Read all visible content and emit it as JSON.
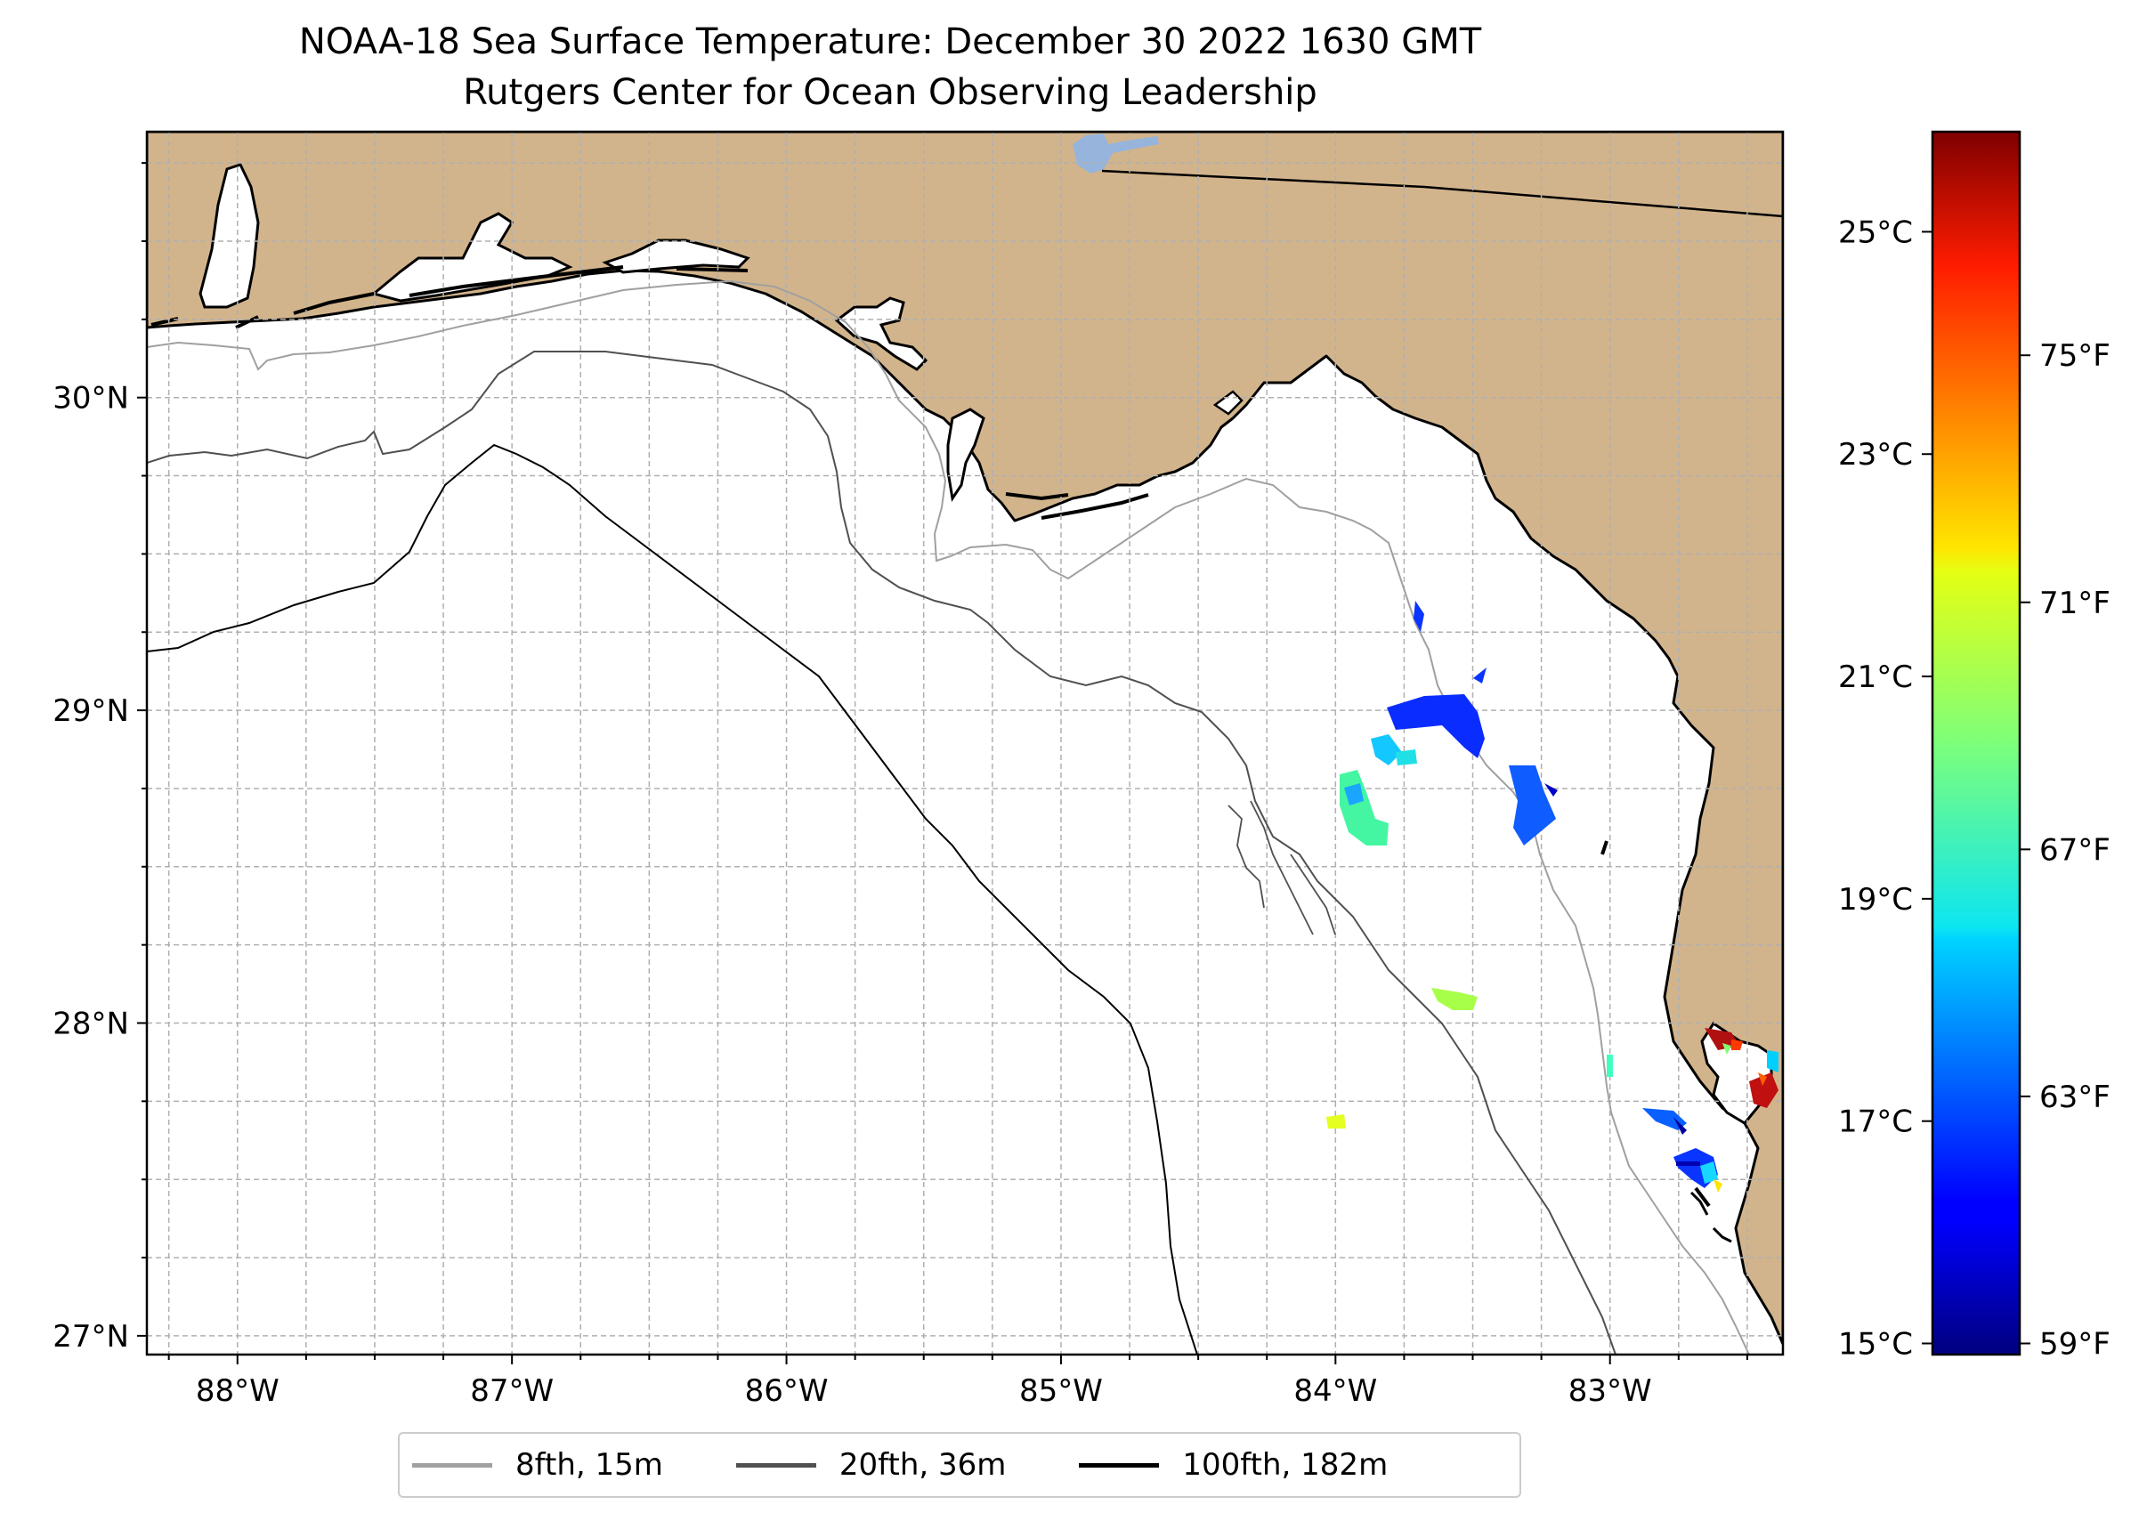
{
  "title": {
    "line1": "NOAA-18 Sea Surface Temperature: December 30 2022 1630 GMT",
    "line2": "Rutgers Center for Ocean Observing Leadership"
  },
  "map": {
    "lon_range": [
      -88.33,
      -82.37
    ],
    "lat_range": [
      26.94,
      30.85
    ],
    "land_color": "#d2b48c",
    "water_color": "#ffffff",
    "lon_ticks": [
      {
        "value": -88,
        "label": "88°W"
      },
      {
        "value": -87,
        "label": "87°W"
      },
      {
        "value": -86,
        "label": "86°W"
      },
      {
        "value": -85,
        "label": "85°W"
      },
      {
        "value": -84,
        "label": "84°W"
      },
      {
        "value": -83,
        "label": "83°W"
      }
    ],
    "lat_ticks": [
      {
        "value": 27,
        "label": "27°N"
      },
      {
        "value": 28,
        "label": "28°N"
      },
      {
        "value": 29,
        "label": "29°N"
      },
      {
        "value": 30,
        "label": "30°N"
      }
    ]
  },
  "colorbar": {
    "celsius_ticks": [
      {
        "value": 15,
        "label": "15°C"
      },
      {
        "value": 17,
        "label": "17°C"
      },
      {
        "value": 19,
        "label": "19°C"
      },
      {
        "value": 21,
        "label": "21°C"
      },
      {
        "value": 23,
        "label": "23°C"
      },
      {
        "value": 25,
        "label": "25°C"
      }
    ],
    "fahrenheit_ticks": [
      {
        "value": 59,
        "label": "59°F"
      },
      {
        "value": 63,
        "label": "63°F"
      },
      {
        "value": 67,
        "label": "67°F"
      },
      {
        "value": 71,
        "label": "71°F"
      },
      {
        "value": 75,
        "label": "75°F"
      }
    ],
    "range_c": [
      14.9,
      25.9
    ],
    "colormap": "jet"
  },
  "legend": {
    "items": [
      {
        "label": "8fth, 15m",
        "color": "#a0a0a0"
      },
      {
        "label": "20fth, 36m",
        "color": "#505050"
      },
      {
        "label": "100fth, 182m",
        "color": "#000000"
      }
    ]
  }
}
